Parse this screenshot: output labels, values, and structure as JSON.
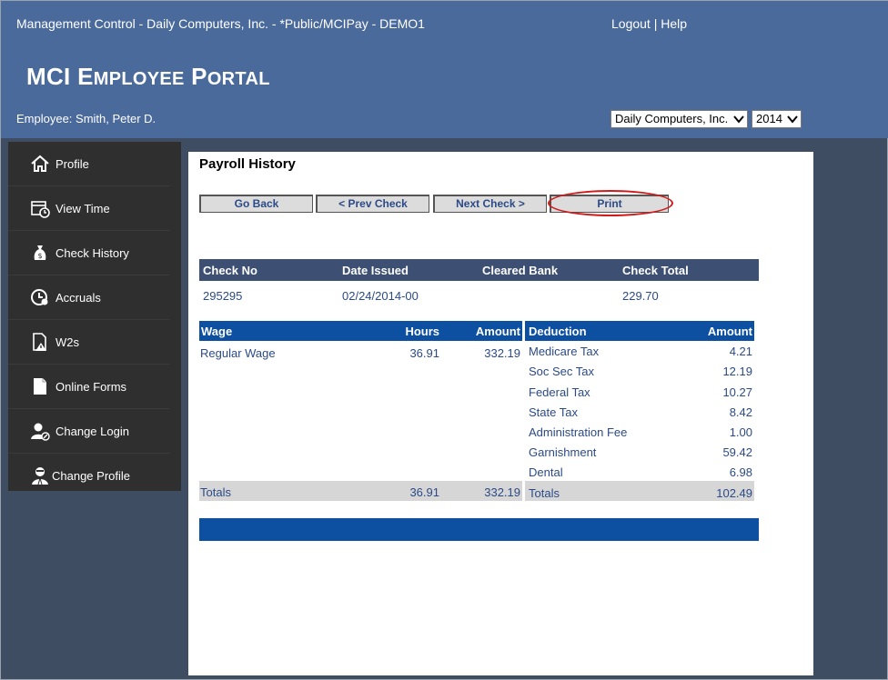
{
  "header": {
    "app_title": "Management Control - Daily Computers, Inc. - *Public/MCIPay - DEMO1",
    "logout": "Logout",
    "separator": "|",
    "help": "Help",
    "portal_title_big1": "MCI E",
    "portal_title_small1": "MPLOYEE",
    "portal_title_big2": " P",
    "portal_title_small2": "ORTAL",
    "employee": "Employee: Smith, Peter D.",
    "company_select": "Daily Computers, Inc.",
    "year_select": "2014"
  },
  "sidebar": {
    "items": [
      {
        "label": "Profile",
        "icon": "home-icon"
      },
      {
        "label": "View Time",
        "icon": "calendar-clock-icon"
      },
      {
        "label": "Check History",
        "icon": "money-bag-icon"
      },
      {
        "label": "Accruals",
        "icon": "clock-icon"
      },
      {
        "label": "W2s",
        "icon": "document-warning-icon"
      },
      {
        "label": "Online Forms",
        "icon": "document-icon"
      },
      {
        "label": "Change Login",
        "icon": "user-edit-icon"
      },
      {
        "label": "Change Profile",
        "icon": "user-profile-icon"
      }
    ]
  },
  "main": {
    "title": "Payroll History",
    "buttons": {
      "go_back": "Go Back",
      "prev_check": "< Prev Check",
      "next_check": "Next Check >",
      "print": "Print"
    },
    "check_table": {
      "headers": [
        "Check No",
        "Date Issued",
        "Cleared Bank",
        "Check Total"
      ],
      "row": {
        "check_no": "295295",
        "date_issued": "02/24/2014-00",
        "cleared_bank": "",
        "check_total": "229.70"
      }
    },
    "wage_table": {
      "headers": {
        "wage": "Wage",
        "hours": "Hours",
        "amount": "Amount"
      },
      "rows": [
        {
          "wage": "Regular Wage",
          "hours": "36.91",
          "amount": "332.19"
        }
      ],
      "totals": {
        "label": "Totals",
        "hours": "36.91",
        "amount": "332.19"
      }
    },
    "deduction_table": {
      "headers": {
        "deduction": "Deduction",
        "amount": "Amount"
      },
      "rows": [
        {
          "name": "Medicare Tax",
          "amount": "4.21"
        },
        {
          "name": "Soc Sec Tax",
          "amount": "12.19"
        },
        {
          "name": "Federal Tax",
          "amount": "10.27"
        },
        {
          "name": "State Tax",
          "amount": "8.42"
        },
        {
          "name": "Administration Fee",
          "amount": "1.00"
        },
        {
          "name": "Garnishment",
          "amount": "59.42"
        },
        {
          "name": "Dental",
          "amount": "6.98"
        }
      ],
      "totals": {
        "label": "Totals",
        "amount": "102.49"
      }
    }
  },
  "colors": {
    "header_bg": "#4a6a9c",
    "sidebar_bg": "#2f2f2f",
    "table_header_dark": "#3d4f73",
    "table_header_blue": "#0d4fa0",
    "link_text": "#2b4a87",
    "print_highlight": "#d01b1b"
  }
}
